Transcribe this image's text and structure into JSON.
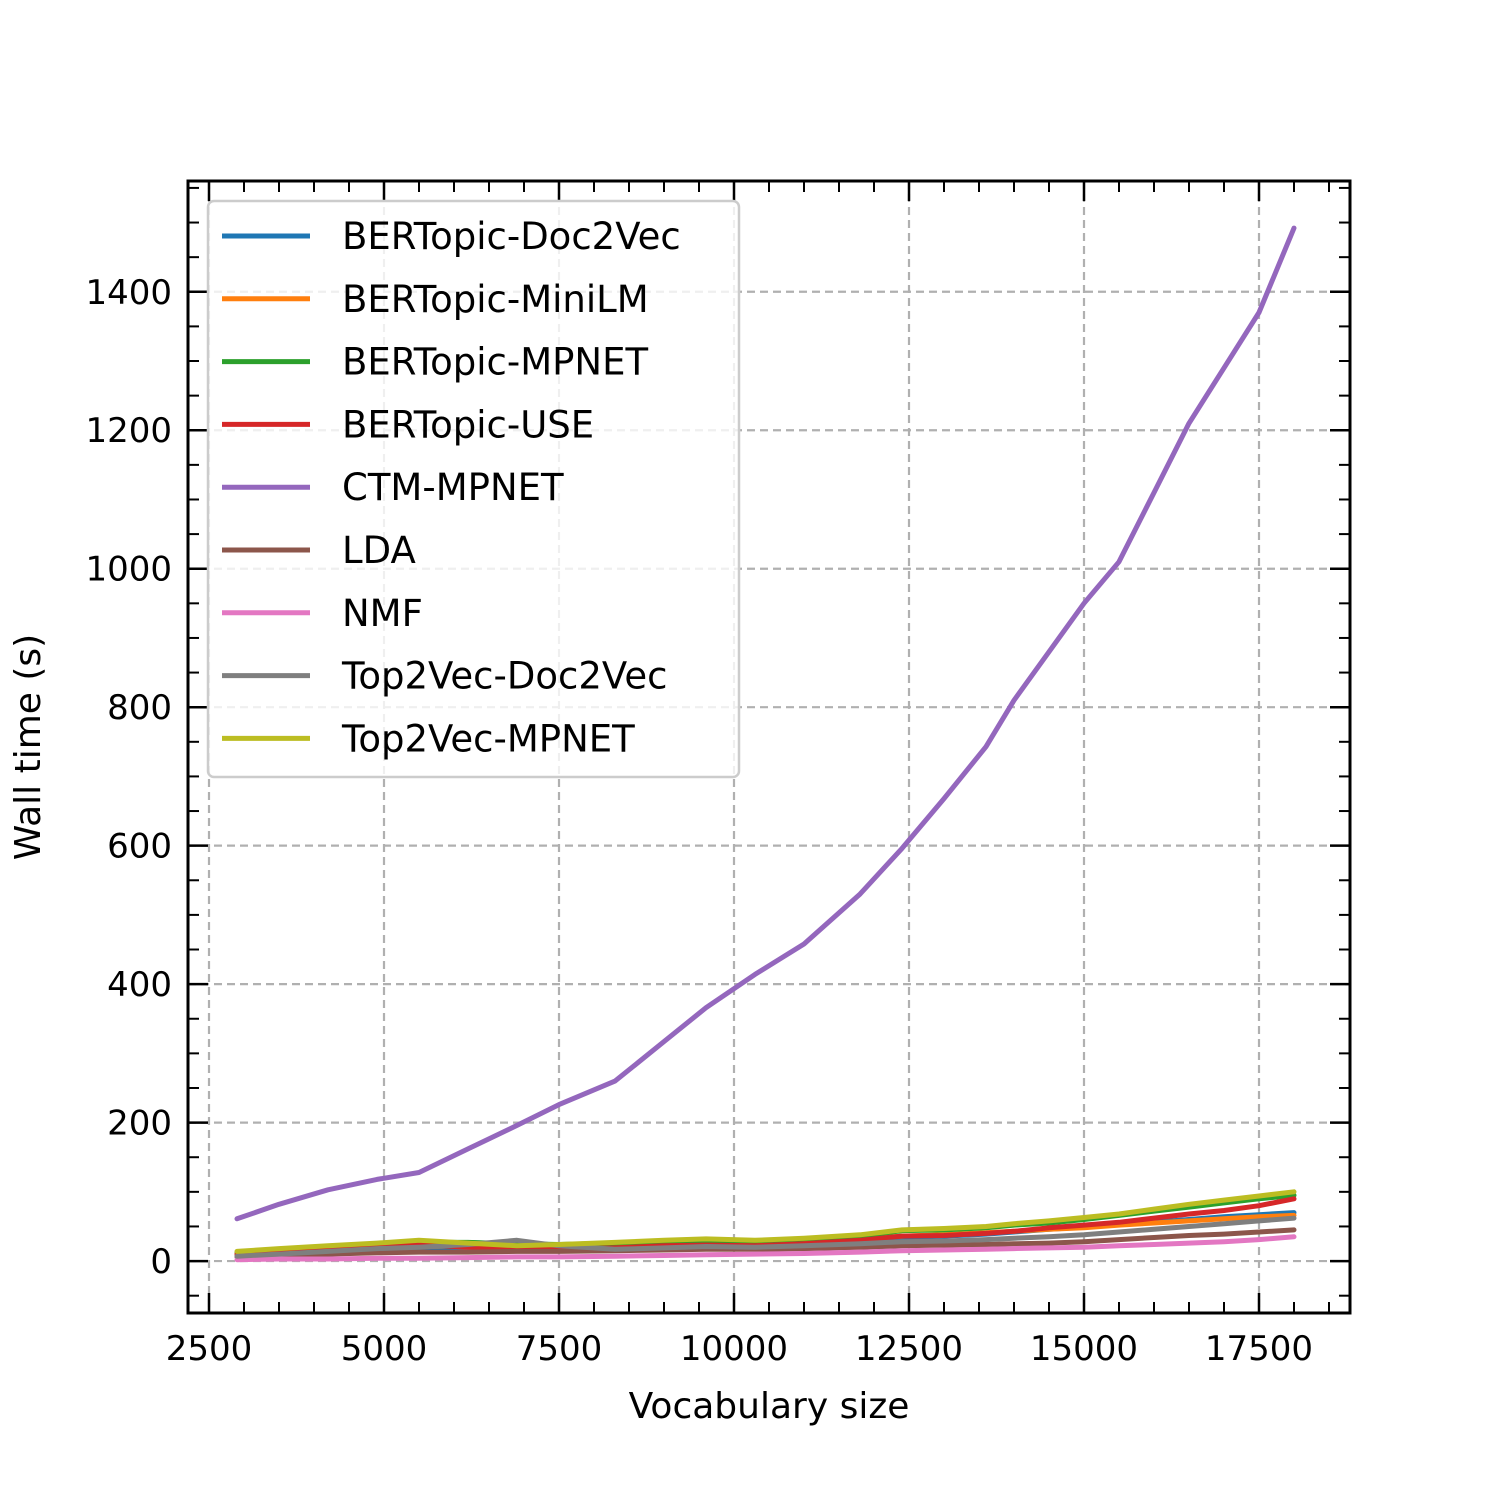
{
  "chart_data": {
    "type": "line",
    "title": "",
    "xlabel": "Vocabulary size",
    "ylabel": "Wall time (s)",
    "xlim": [
      2200,
      18800
    ],
    "ylim": [
      -75,
      1560
    ],
    "xticks": [
      2500,
      5000,
      7500,
      10000,
      12500,
      15000,
      17500
    ],
    "yticks": [
      0,
      200,
      400,
      600,
      800,
      1000,
      1200,
      1400
    ],
    "grid": true,
    "legend_position": "upper-left",
    "x": [
      2900,
      3500,
      4200,
      4900,
      5500,
      6200,
      6900,
      7500,
      8300,
      9000,
      9600,
      10300,
      11000,
      11800,
      12400,
      13000,
      13600,
      14000,
      14500,
      15000,
      15500,
      16000,
      16500,
      17000,
      17500,
      18000
    ],
    "series": [
      {
        "name": "BERTopic-Doc2Vec",
        "color": "#1f77b4",
        "values": [
          8,
          11,
          14,
          17,
          19,
          20,
          21,
          20,
          20,
          22,
          24,
          24,
          26,
          30,
          34,
          36,
          39,
          42,
          46,
          49,
          53,
          56,
          60,
          64,
          67,
          70
        ]
      },
      {
        "name": "BERTopic-MiniLM",
        "color": "#ff7f0e",
        "values": [
          9,
          12,
          15,
          19,
          21,
          22,
          22,
          21,
          22,
          24,
          26,
          26,
          29,
          32,
          36,
          38,
          41,
          43,
          46,
          48,
          52,
          55,
          58,
          61,
          64,
          66
        ]
      },
      {
        "name": "BERTopic-MPNET",
        "color": "#2ca02c",
        "values": [
          12,
          16,
          20,
          24,
          27,
          27,
          25,
          24,
          26,
          28,
          30,
          29,
          32,
          36,
          44,
          45,
          48,
          52,
          55,
          60,
          66,
          72,
          78,
          84,
          90,
          95
        ]
      },
      {
        "name": "BERTopic-USE",
        "color": "#d62728",
        "values": [
          10,
          14,
          18,
          22,
          24,
          20,
          17,
          17,
          19,
          22,
          23,
          22,
          25,
          30,
          36,
          37,
          40,
          43,
          48,
          52,
          56,
          62,
          68,
          73,
          80,
          90
        ]
      },
      {
        "name": "CTM-MPNET",
        "color": "#9467bd",
        "values": [
          61,
          82,
          103,
          118,
          128,
          162,
          196,
          226,
          260,
          317,
          366,
          414,
          458,
          530,
          596,
          668,
          743,
          810,
          880,
          950,
          1010,
          1110,
          1210,
          1290,
          1370,
          1492
        ]
      },
      {
        "name": "LDA",
        "color": "#8c564b",
        "values": [
          6,
          8,
          10,
          12,
          13,
          13,
          14,
          14,
          15,
          16,
          17,
          17,
          18,
          20,
          22,
          23,
          24,
          25,
          26,
          28,
          31,
          34,
          37,
          39,
          42,
          45
        ]
      },
      {
        "name": "NMF",
        "color": "#e377c2",
        "values": [
          2,
          3,
          3,
          4,
          4,
          5,
          6,
          6,
          7,
          8,
          9,
          10,
          11,
          13,
          15,
          16,
          17,
          18,
          19,
          20,
          22,
          24,
          26,
          28,
          31,
          35
        ]
      },
      {
        "name": "Top2Vec-Doc2Vec",
        "color": "#7f7f7f",
        "values": [
          7,
          10,
          14,
          18,
          20,
          24,
          30,
          22,
          17,
          19,
          21,
          20,
          22,
          25,
          28,
          29,
          31,
          33,
          35,
          38,
          42,
          46,
          50,
          54,
          58,
          62
        ]
      },
      {
        "name": "Top2Vec-MPNET",
        "color": "#bcbd22",
        "values": [
          14,
          18,
          22,
          26,
          30,
          26,
          22,
          24,
          27,
          30,
          32,
          30,
          33,
          38,
          45,
          47,
          50,
          54,
          58,
          63,
          68,
          75,
          82,
          88,
          94,
          100
        ]
      }
    ]
  }
}
